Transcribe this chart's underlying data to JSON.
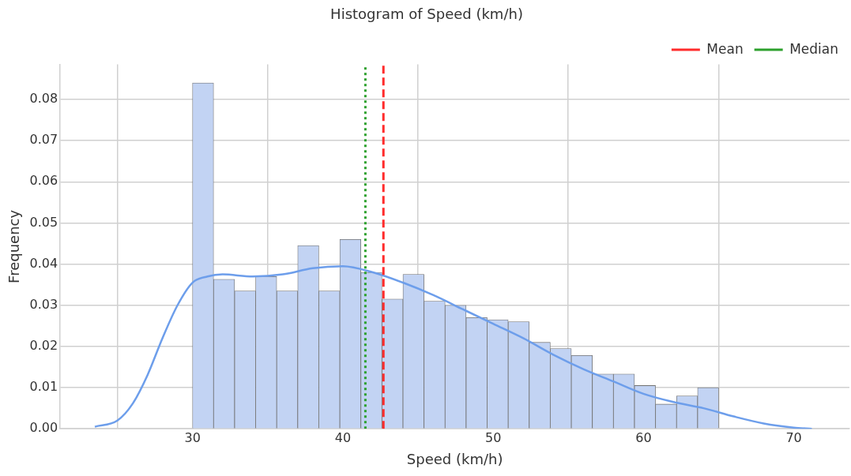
{
  "chart_data": {
    "type": "histogram",
    "title": "Histogram of Speed (km/h)",
    "xlabel": "Speed (km/h)",
    "ylabel": "Frequency",
    "bins": [
      30,
      31.4,
      32.8,
      34.2,
      35.6,
      37,
      38.4,
      39.8,
      41.2,
      42.6,
      44,
      45.4,
      46.8,
      48.2,
      49.6,
      51,
      52.4,
      53.8,
      55.2,
      56.6,
      58,
      59.4,
      60.8,
      62.2,
      63.6,
      65
    ],
    "series": [
      {
        "color": "#c2d3f3",
        "values": [
          0.084,
          0.0363,
          0.0335,
          0.037,
          0.0335,
          0.0445,
          0.0335,
          0.046,
          0.038,
          0.0315,
          0.0375,
          0.031,
          0.03,
          0.027,
          0.0265,
          0.026,
          0.021,
          0.0195,
          0.0178,
          0.0133,
          0.0133,
          0.0105,
          0.006,
          0.008,
          0.01
        ]
      },
      {
        "type": "line",
        "color": "#6d9eeb",
        "x": [
          23.5,
          25,
          26,
          27,
          28,
          29,
          30,
          31,
          32,
          34,
          36,
          38,
          40,
          42,
          44,
          46,
          48,
          50,
          52,
          54,
          56,
          58,
          60,
          62,
          64,
          66,
          68,
          70,
          71.2
        ],
        "values": [
          0.0005,
          0.002,
          0.006,
          0.013,
          0.022,
          0.03,
          0.0355,
          0.037,
          0.0375,
          0.037,
          0.0375,
          0.039,
          0.0395,
          0.038,
          0.0355,
          0.0325,
          0.029,
          0.0255,
          0.022,
          0.018,
          0.0145,
          0.0115,
          0.0085,
          0.0065,
          0.005,
          0.003,
          0.0013,
          0.0003,
          0
        ]
      }
    ],
    "ref_lines": [
      {
        "axis": "x",
        "value": 42.7,
        "label": "Mean",
        "color": "#ff2b2b",
        "line_style": "dashed"
      },
      {
        "axis": "x",
        "value": 41.5,
        "label": "Median",
        "color": "#2ca02c",
        "line_style": "dotted"
      }
    ],
    "xlim": [
      21.2,
      73.7
    ],
    "ylim": [
      0,
      0.0885
    ],
    "xticks": [
      30,
      40,
      50,
      60,
      70
    ],
    "yticks": [
      {
        "value": 0,
        "label": "0.00"
      },
      {
        "value": 0.01,
        "label": "0.01"
      },
      {
        "value": 0.02,
        "label": "0.02"
      },
      {
        "value": 0.03,
        "label": "0.03"
      },
      {
        "value": 0.04,
        "label": "0.04"
      },
      {
        "value": 0.05,
        "label": "0.05"
      },
      {
        "value": 0.06,
        "label": "0.06"
      },
      {
        "value": 0.07,
        "label": "0.07"
      },
      {
        "value": 0.08,
        "label": "0.08"
      }
    ],
    "grid": true,
    "legend": "top right"
  }
}
